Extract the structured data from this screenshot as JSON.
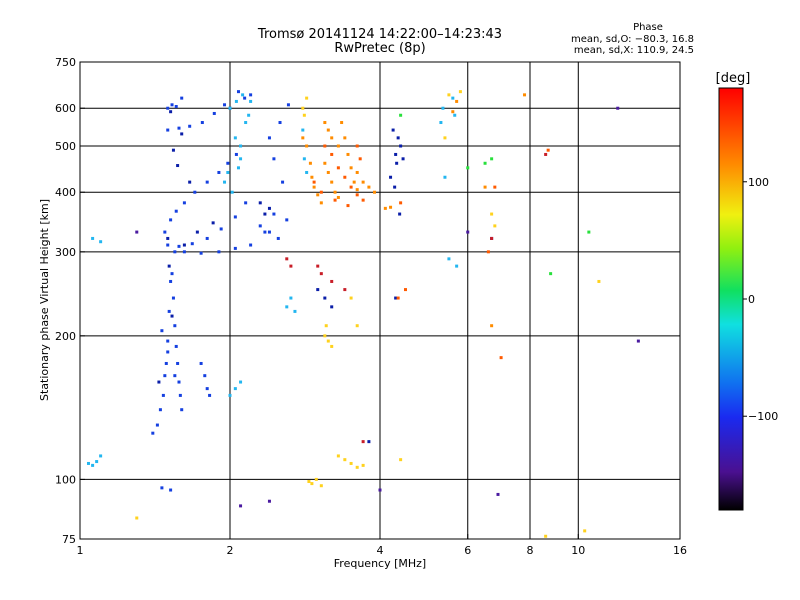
{
  "header": {
    "title_line1": "Tromsø 20141124  14:22:00–14:23:43",
    "title_line2": "RwPretec (8p)"
  },
  "phase_box": {
    "heading": "Phase",
    "line_o": "mean, sd,O: −80.3, 16.8",
    "line_x": "mean, sd,X: 110.9, 24.5"
  },
  "chart_data": {
    "type": "scatter",
    "xlabel": "Frequency [MHz]",
    "ylabel": "Stationary phase Virtual Height [km]",
    "x_scale": "log2",
    "y_scale": "log",
    "xlim": [
      1,
      16
    ],
    "ylim": [
      75,
      750
    ],
    "x_ticks": [
      1,
      2,
      4,
      6,
      8,
      10,
      16
    ],
    "x_tick_labels": [
      "1",
      "2",
      "4",
      "6",
      "8",
      "10",
      "16"
    ],
    "x_grid": [
      2,
      4,
      6,
      8,
      10
    ],
    "y_ticks": [
      75,
      100,
      200,
      300,
      400,
      500,
      600,
      750
    ],
    "y_tick_labels": [
      "75",
      "100",
      "200",
      "300",
      "400",
      "500",
      "600",
      "750"
    ],
    "y_grid": [
      100,
      200,
      300,
      400,
      500,
      600
    ],
    "grid": true,
    "colorbar": {
      "unit": "[deg]",
      "range": [
        -180,
        180
      ],
      "ticks": [
        100,
        0,
        -100
      ],
      "tick_labels": [
        "100",
        "0",
        "−100"
      ],
      "colormap": "rainbow"
    },
    "series": [
      {
        "color": "#1540e0",
        "points": [
          [
            1.5,
            600
          ],
          [
            1.53,
            610
          ],
          [
            1.56,
            605
          ],
          [
            1.6,
            630
          ],
          [
            1.5,
            540
          ],
          [
            1.58,
            545
          ],
          [
            1.66,
            550
          ],
          [
            1.76,
            560
          ],
          [
            1.86,
            585
          ],
          [
            1.95,
            610
          ],
          [
            1.48,
            330
          ],
          [
            1.52,
            350
          ],
          [
            1.56,
            365
          ],
          [
            1.62,
            380
          ],
          [
            1.7,
            400
          ],
          [
            1.8,
            420
          ],
          [
            1.9,
            440
          ],
          [
            1.98,
            460
          ],
          [
            2.06,
            480
          ],
          [
            1.5,
            310
          ],
          [
            1.58,
            308
          ],
          [
            1.68,
            312
          ],
          [
            1.8,
            320
          ],
          [
            1.92,
            335
          ],
          [
            2.05,
            355
          ],
          [
            2.15,
            380
          ],
          [
            1.62,
            300
          ],
          [
            1.75,
            298
          ],
          [
            1.9,
            300
          ],
          [
            2.05,
            305
          ],
          [
            2.2,
            310
          ],
          [
            2.35,
            330
          ],
          [
            2.45,
            360
          ],
          [
            1.55,
            300
          ],
          [
            1.53,
            270
          ],
          [
            1.54,
            240
          ],
          [
            1.55,
            210
          ],
          [
            1.56,
            190
          ],
          [
            1.57,
            175
          ],
          [
            1.58,
            160
          ],
          [
            1.59,
            150
          ],
          [
            1.6,
            140
          ],
          [
            1.52,
            260
          ],
          [
            1.51,
            225
          ],
          [
            1.5,
            195
          ],
          [
            1.49,
            175
          ],
          [
            1.48,
            165
          ],
          [
            1.47,
            150
          ],
          [
            1.45,
            140
          ],
          [
            1.43,
            130
          ],
          [
            1.4,
            125
          ],
          [
            1.46,
            205
          ],
          [
            1.5,
            185
          ],
          [
            1.55,
            165
          ],
          [
            1.75,
            175
          ],
          [
            1.78,
            165
          ],
          [
            1.8,
            155
          ],
          [
            1.82,
            150
          ],
          [
            2.3,
            340
          ],
          [
            2.4,
            330
          ],
          [
            2.5,
            320
          ],
          [
            2.6,
            350
          ],
          [
            2.45,
            470
          ],
          [
            2.55,
            420
          ],
          [
            2.4,
            520
          ],
          [
            2.52,
            560
          ],
          [
            2.62,
            610
          ],
          [
            2.2,
            640
          ],
          [
            2.14,
            630
          ],
          [
            2.08,
            650
          ],
          [
            1.46,
            96
          ],
          [
            1.52,
            95
          ]
        ]
      },
      {
        "color": "#0a1ea8",
        "points": [
          [
            1.52,
            590
          ],
          [
            1.57,
            455
          ],
          [
            1.6,
            530
          ],
          [
            1.72,
            330
          ],
          [
            1.85,
            345
          ],
          [
            1.5,
            320
          ],
          [
            1.66,
            420
          ],
          [
            1.54,
            490
          ],
          [
            2.3,
            380
          ],
          [
            2.35,
            360
          ],
          [
            2.4,
            370
          ],
          [
            2.0,
            600
          ],
          [
            1.51,
            280
          ],
          [
            1.53,
            220
          ],
          [
            1.44,
            160
          ],
          [
            1.62,
            310
          ],
          [
            4.3,
            480
          ],
          [
            4.35,
            520
          ],
          [
            4.4,
            500
          ],
          [
            4.25,
            540
          ],
          [
            4.32,
            460
          ],
          [
            4.45,
            470
          ],
          [
            4.2,
            430
          ],
          [
            4.28,
            410
          ],
          [
            4.38,
            360
          ],
          [
            3.0,
            250
          ],
          [
            3.1,
            240
          ],
          [
            3.2,
            230
          ],
          [
            3.8,
            120
          ],
          [
            4.3,
            240
          ],
          [
            6.7,
            320
          ]
        ]
      },
      {
        "color": "#23b6f0",
        "points": [
          [
            2.0,
            600
          ],
          [
            2.06,
            620
          ],
          [
            2.12,
            640
          ],
          [
            2.15,
            560
          ],
          [
            2.1,
            500
          ],
          [
            2.08,
            450
          ],
          [
            1.98,
            440
          ],
          [
            2.02,
            400
          ],
          [
            1.95,
            420
          ],
          [
            2.05,
            520
          ],
          [
            2.1,
            470
          ],
          [
            2.18,
            580
          ],
          [
            2.2,
            620
          ],
          [
            2.0,
            150
          ],
          [
            2.05,
            155
          ],
          [
            2.1,
            160
          ],
          [
            1.04,
            108
          ],
          [
            1.06,
            107
          ],
          [
            1.08,
            109
          ],
          [
            1.1,
            112
          ],
          [
            1.06,
            320
          ],
          [
            1.1,
            315
          ],
          [
            2.8,
            540
          ],
          [
            2.82,
            470
          ],
          [
            2.85,
            440
          ],
          [
            2.6,
            230
          ],
          [
            2.65,
            240
          ],
          [
            2.7,
            225
          ],
          [
            5.3,
            560
          ],
          [
            5.35,
            600
          ],
          [
            5.6,
            630
          ],
          [
            5.65,
            580
          ],
          [
            5.4,
            430
          ],
          [
            5.7,
            280
          ],
          [
            5.5,
            290
          ]
        ]
      },
      {
        "color": "#ff8c00",
        "points": [
          [
            2.8,
            520
          ],
          [
            2.85,
            500
          ],
          [
            2.9,
            460
          ],
          [
            2.92,
            430
          ],
          [
            2.95,
            410
          ],
          [
            3.0,
            395
          ],
          [
            3.05,
            380
          ],
          [
            3.1,
            460
          ],
          [
            3.15,
            440
          ],
          [
            3.2,
            420
          ],
          [
            3.25,
            400
          ],
          [
            3.3,
            390
          ],
          [
            3.35,
            560
          ],
          [
            3.4,
            520
          ],
          [
            3.45,
            480
          ],
          [
            3.5,
            450
          ],
          [
            3.55,
            420
          ],
          [
            3.6,
            405
          ],
          [
            3.1,
            560
          ],
          [
            3.15,
            540
          ],
          [
            3.2,
            520
          ],
          [
            3.3,
            500
          ],
          [
            3.6,
            440
          ],
          [
            3.7,
            420
          ],
          [
            3.8,
            410
          ],
          [
            3.9,
            400
          ],
          [
            4.1,
            370
          ],
          [
            4.2,
            372
          ],
          [
            5.6,
            590
          ],
          [
            5.7,
            620
          ],
          [
            6.5,
            410
          ],
          [
            6.7,
            210
          ],
          [
            7.8,
            640
          ]
        ]
      },
      {
        "color": "#ffd21e",
        "points": [
          [
            2.8,
            600
          ],
          [
            2.82,
            580
          ],
          [
            2.85,
            630
          ],
          [
            3.1,
            200
          ],
          [
            3.15,
            195
          ],
          [
            3.2,
            190
          ],
          [
            3.12,
            210
          ],
          [
            3.3,
            112
          ],
          [
            3.4,
            110
          ],
          [
            3.5,
            108
          ],
          [
            3.6,
            106
          ],
          [
            3.7,
            107
          ],
          [
            2.88,
            99
          ],
          [
            2.92,
            98
          ],
          [
            2.98,
            100
          ],
          [
            3.05,
            97
          ],
          [
            3.6,
            210
          ],
          [
            3.5,
            240
          ],
          [
            5.4,
            520
          ],
          [
            5.5,
            640
          ],
          [
            5.8,
            650
          ],
          [
            6.8,
            340
          ],
          [
            6.7,
            360
          ],
          [
            4.4,
            110
          ],
          [
            1.3,
            83
          ],
          [
            8.6,
            76
          ],
          [
            10.3,
            78
          ],
          [
            11.0,
            260
          ]
        ]
      },
      {
        "color": "#ff5a00",
        "points": [
          [
            3.1,
            500
          ],
          [
            3.2,
            480
          ],
          [
            3.3,
            450
          ],
          [
            3.4,
            430
          ],
          [
            3.5,
            410
          ],
          [
            3.6,
            395
          ],
          [
            3.7,
            385
          ],
          [
            2.95,
            420
          ],
          [
            3.05,
            400
          ],
          [
            3.25,
            385
          ],
          [
            3.45,
            375
          ],
          [
            3.6,
            500
          ],
          [
            3.65,
            470
          ],
          [
            4.4,
            380
          ],
          [
            4.35,
            240
          ],
          [
            4.5,
            250
          ],
          [
            6.6,
            300
          ],
          [
            8.7,
            490
          ],
          [
            7.0,
            180
          ],
          [
            6.8,
            410
          ]
        ]
      },
      {
        "color": "#c81e28",
        "points": [
          [
            2.6,
            290
          ],
          [
            2.65,
            280
          ],
          [
            3.0,
            280
          ],
          [
            3.05,
            270
          ],
          [
            3.2,
            260
          ],
          [
            3.7,
            120
          ],
          [
            6.7,
            320
          ],
          [
            8.6,
            480
          ],
          [
            3.4,
            250
          ]
        ]
      },
      {
        "color": "#28e03c",
        "points": [
          [
            6.5,
            460
          ],
          [
            6.7,
            470
          ],
          [
            10.5,
            330
          ],
          [
            4.4,
            580
          ],
          [
            8.8,
            270
          ],
          [
            6.0,
            450
          ]
        ]
      },
      {
        "color": "#4a1aa0",
        "points": [
          [
            1.3,
            330
          ],
          [
            2.1,
            88
          ],
          [
            6.0,
            330
          ],
          [
            12.0,
            600
          ],
          [
            13.2,
            195
          ],
          [
            4.0,
            95
          ],
          [
            2.4,
            90
          ],
          [
            6.9,
            93
          ]
        ]
      }
    ]
  }
}
